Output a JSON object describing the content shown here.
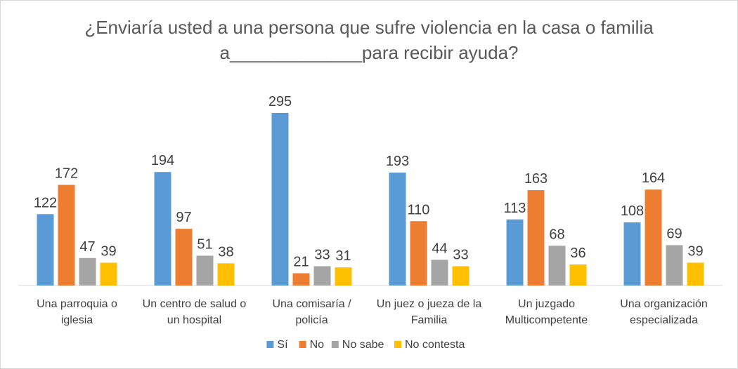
{
  "chart_data": {
    "type": "bar",
    "title_line1": "¿Enviaría usted a una persona que sufre violencia en la casa o familia",
    "title_line2": "a_____________para  recibir ayuda?",
    "categories": [
      [
        "Una parroquia o",
        "iglesia"
      ],
      [
        "Un centro de salud o",
        "un hospital"
      ],
      [
        "Una comisaría /",
        "policía"
      ],
      [
        "Un juez o jueza de la",
        "Familia"
      ],
      [
        "Un juzgado",
        "Multicompetente"
      ],
      [
        "Una organización",
        "especializada"
      ]
    ],
    "series": [
      {
        "name": "Sí",
        "color": "#5B9BD5",
        "values": [
          122,
          194,
          295,
          193,
          113,
          108
        ]
      },
      {
        "name": "No",
        "color": "#ED7D31",
        "values": [
          172,
          97,
          21,
          110,
          163,
          164
        ]
      },
      {
        "name": "No sabe",
        "color": "#A5A5A5",
        "values": [
          47,
          51,
          33,
          44,
          68,
          69
        ]
      },
      {
        "name": "No contesta",
        "color": "#FFC000",
        "values": [
          39,
          38,
          31,
          33,
          36,
          39
        ]
      }
    ],
    "ylim": [
      0,
      300
    ],
    "y_axis_visible": false,
    "grid": false,
    "data_labels": true,
    "legend_position": "bottom"
  }
}
